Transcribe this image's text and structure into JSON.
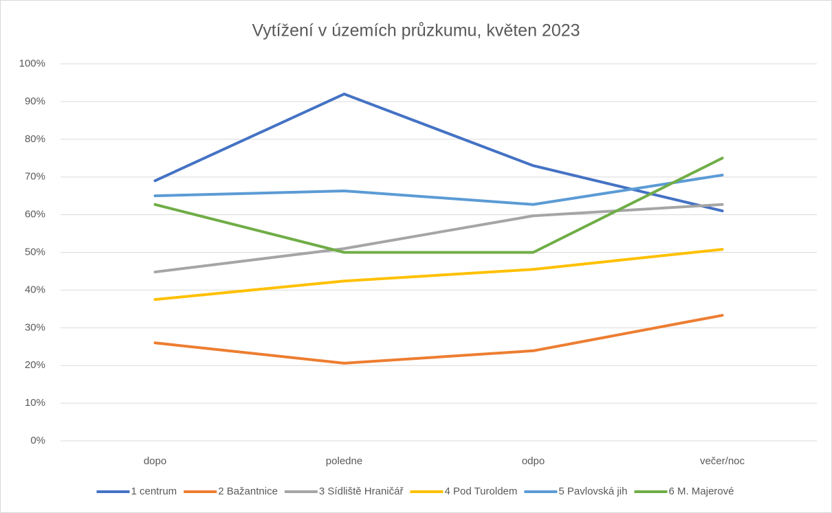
{
  "chart_data": {
    "type": "line",
    "title": "Vytížení v územích průzkumu, květen 2023",
    "categories": [
      "dopo",
      "poledne",
      "odpo",
      "večer/noc"
    ],
    "series": [
      {
        "name": "1 centrum",
        "color": "#4472c4",
        "values": [
          69,
          92,
          73,
          61
        ]
      },
      {
        "name": "2 Bažantnice",
        "color": "#ed7d31",
        "values": [
          26,
          20.6,
          23.9,
          33.3
        ]
      },
      {
        "name": "3 Sídliště Hraničář",
        "color": "#a5a5a5",
        "values": [
          44.8,
          51,
          59.7,
          62.7
        ]
      },
      {
        "name": "4 Pod Turoldem",
        "color": "#ffc000",
        "values": [
          37.5,
          42.4,
          45.5,
          50.8
        ]
      },
      {
        "name": "5 Pavlovská jih",
        "color": "#5b9bd5",
        "values": [
          65,
          66.3,
          62.7,
          70.5
        ]
      },
      {
        "name": "6 M. Majerové",
        "color": "#70ad47",
        "values": [
          62.7,
          50,
          50,
          75
        ]
      }
    ],
    "ylim": [
      0,
      100
    ],
    "yticks": [
      {
        "value": 0,
        "label": "0%"
      },
      {
        "value": 10,
        "label": "10%"
      },
      {
        "value": 20,
        "label": "20%"
      },
      {
        "value": 30,
        "label": "30%"
      },
      {
        "value": 40,
        "label": "40%"
      },
      {
        "value": 50,
        "label": "50%"
      },
      {
        "value": 60,
        "label": "60%"
      },
      {
        "value": 70,
        "label": "70%"
      },
      {
        "value": 80,
        "label": "80%"
      },
      {
        "value": 90,
        "label": "90%"
      },
      {
        "value": 100,
        "label": "100%"
      }
    ],
    "grid": true,
    "legend": "bottom"
  }
}
